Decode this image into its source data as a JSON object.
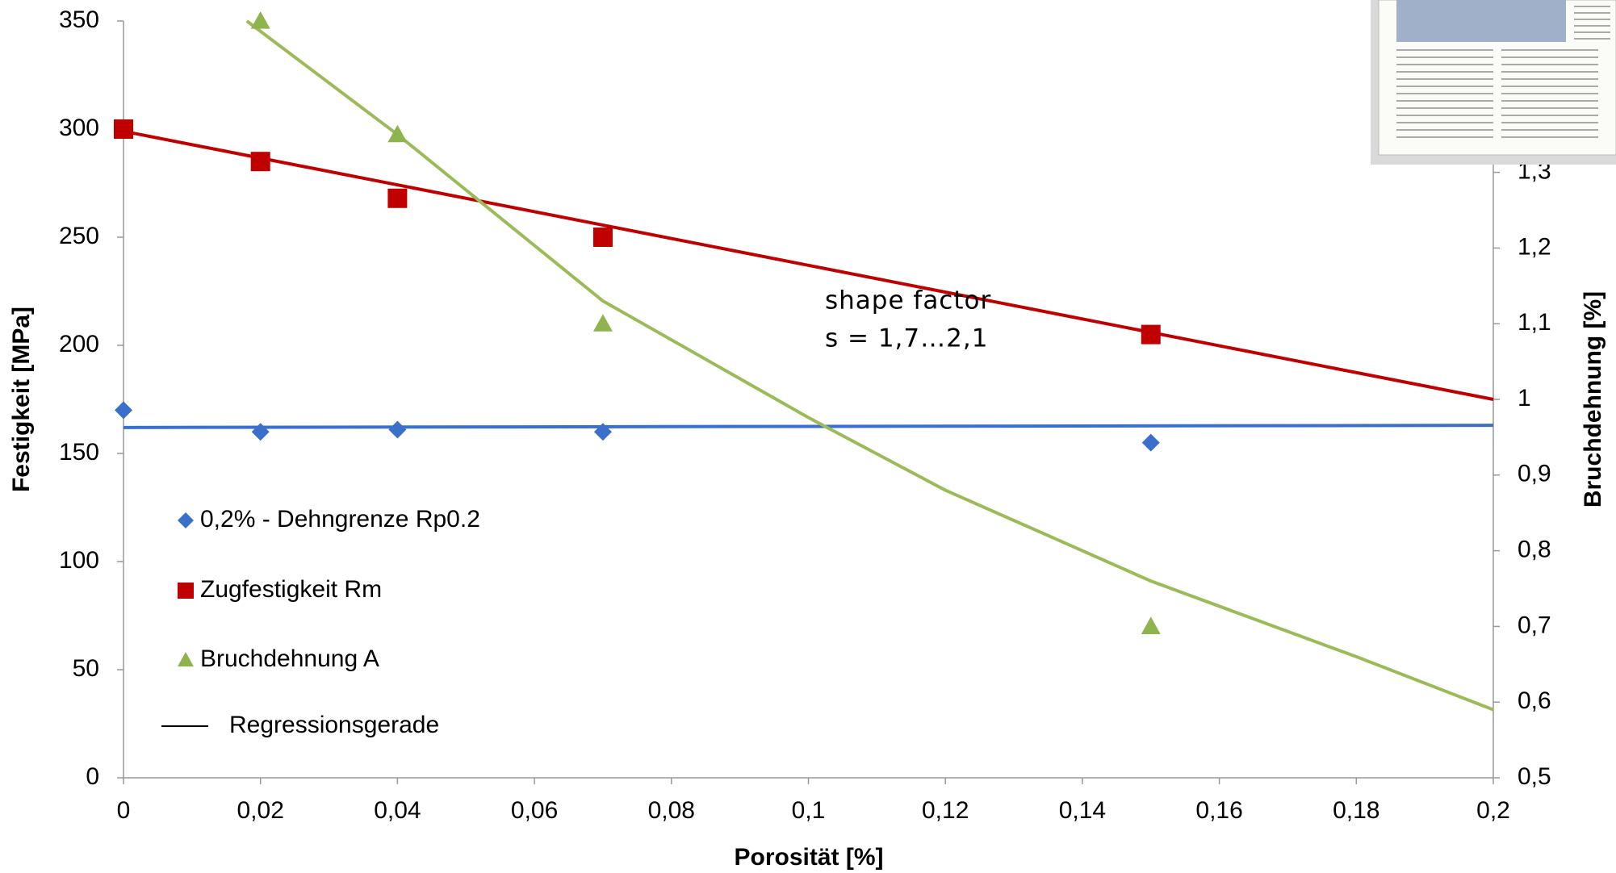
{
  "chart_data": {
    "type": "scatter",
    "xlabel": "Porosität [%]",
    "ylabel": "Festigkeit [MPa]",
    "y2label": "Bruchdehnung [%]",
    "xlim": [
      0,
      0.2
    ],
    "xticks": [
      0,
      {
        "value": 0.02,
        "label": "0,02"
      },
      {
        "value": 0.04,
        "label": "0,04"
      },
      {
        "value": 0.06,
        "label": "0,06"
      },
      {
        "value": 0.08,
        "label": "0,08"
      },
      {
        "value": 0.1,
        "label": "0,1"
      },
      {
        "value": 0.12,
        "label": "0,12"
      },
      {
        "value": 0.14,
        "label": "0,14"
      },
      {
        "value": 0.16,
        "label": "0,16"
      },
      {
        "value": 0.18,
        "label": "0,18"
      },
      {
        "value": 0.2,
        "label": "0,2"
      }
    ],
    "ylim": [
      0,
      350
    ],
    "yticks": [
      0,
      50,
      100,
      150,
      200,
      250,
      300,
      350
    ],
    "y2lim": [
      0.5,
      1.5
    ],
    "y2ticks": [
      {
        "value": 0.5,
        "label": "0,5"
      },
      {
        "value": 0.6,
        "label": "0,6"
      },
      {
        "value": 0.7,
        "label": "0,7"
      },
      {
        "value": 0.8,
        "label": "0,8"
      },
      {
        "value": 0.9,
        "label": "0,9"
      },
      1,
      {
        "value": 1.1,
        "label": "1,1"
      },
      {
        "value": 1.2,
        "label": "1,2"
      },
      {
        "value": 1.3,
        "label": "1,3"
      }
    ],
    "series": [
      {
        "name": "0,2% - Dehngrenze Rp0.2",
        "color": "#3a6fcc",
        "marker": "diamond",
        "x": [
          0,
          0.02,
          0.04,
          0.07,
          0.15
        ],
        "values": [
          170,
          160,
          161,
          160,
          155
        ]
      },
      {
        "name": "Zugfestigkeit Rm",
        "color": "#c00000",
        "marker": "square",
        "x": [
          0,
          0.02,
          0.04,
          0.07,
          0.15
        ],
        "values": [
          300,
          285,
          268,
          250,
          205
        ]
      },
      {
        "name": "Bruchdehnung A",
        "color": "#8fb34d",
        "marker": "triangle",
        "axis": "y2",
        "x": [
          0.02,
          0.04,
          0.07,
          0.15
        ],
        "values": [
          1.5,
          1.35,
          1.1,
          0.7
        ]
      }
    ],
    "regression": {
      "name": "Regressionsgerade",
      "color": "#000000",
      "lines": [
        {
          "color": "#3a6fd0",
          "x": [
            0,
            0.2
          ],
          "values": [
            162,
            163
          ]
        },
        {
          "color": "#c00000",
          "x": [
            0,
            0.2
          ],
          "values": [
            299,
            175
          ]
        },
        {
          "color": "#9bbb59",
          "axis": "y2",
          "x": [
            0.018,
            0.04,
            0.07,
            0.1,
            0.12,
            0.15,
            0.18,
            0.2
          ],
          "values": [
            1.5,
            1.35,
            1.13,
            0.976,
            0.88,
            0.76,
            0.66,
            0.59
          ]
        }
      ]
    },
    "annotation": [
      "shape factor",
      "s = 1,7…2,1"
    ]
  }
}
